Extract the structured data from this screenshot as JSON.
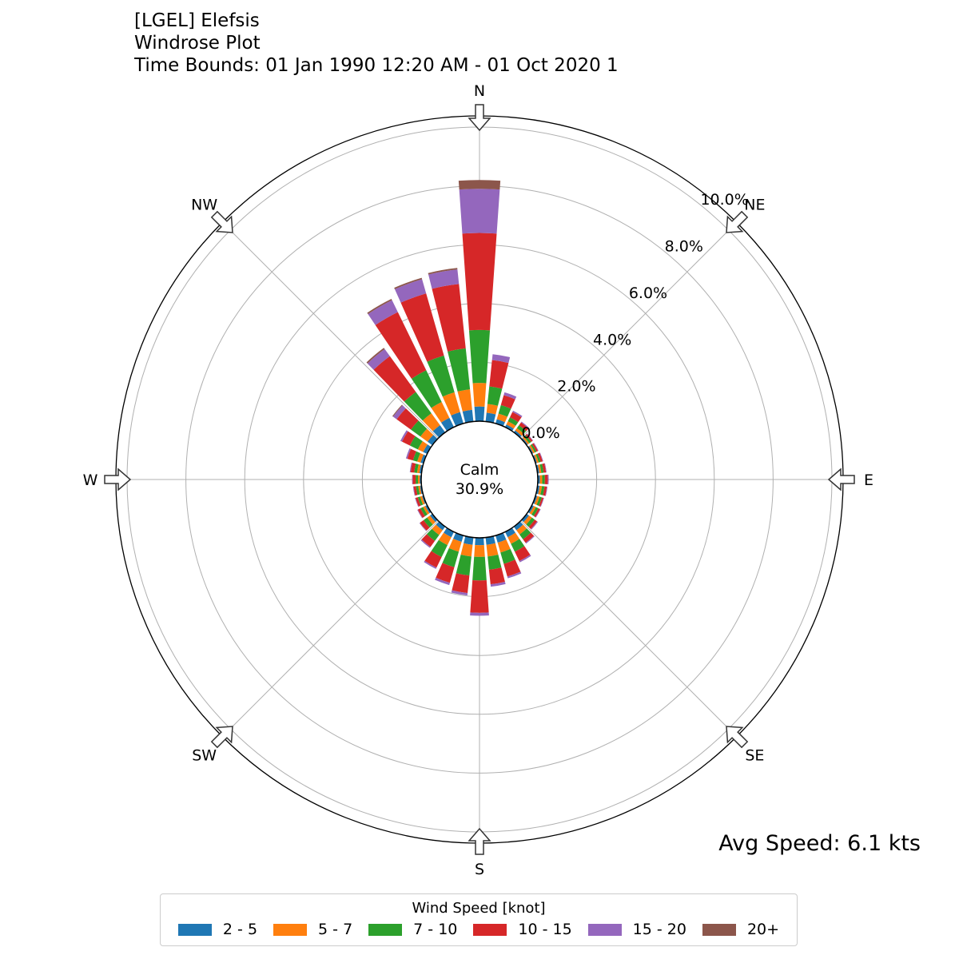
{
  "title_lines": [
    "[LGEL] Elefsis",
    "Windrose Plot",
    "Time Bounds: 01 Jan 1990 12:20 AM - 01 Oct 2020 1"
  ],
  "avg_speed": "Avg Speed: 6.1 kts",
  "calm": {
    "label": "Calm",
    "value": "30.9%"
  },
  "legend": {
    "title": "Wind Speed [knot]",
    "items": [
      {
        "label": "2 - 5",
        "color": "#1f77b4"
      },
      {
        "label": "5 - 7",
        "color": "#ff7f0e"
      },
      {
        "label": "7 - 10",
        "color": "#2ca02c"
      },
      {
        "label": "10 - 15",
        "color": "#d62728"
      },
      {
        "label": "15 - 20",
        "color": "#9467bd"
      },
      {
        "label": "20+",
        "color": "#8c564b"
      }
    ]
  },
  "chart_data": {
    "type": "windrose",
    "calm_percent": 30.9,
    "direction_labels": [
      "N",
      "NE",
      "E",
      "SE",
      "S",
      "SW",
      "W",
      "NW"
    ],
    "radial_tick_labels": [
      "0.0%",
      "2.0%",
      "4.0%",
      "6.0%",
      "8.0%",
      "10.0%"
    ],
    "radial_ticks": [
      0,
      2,
      4,
      6,
      8,
      10
    ],
    "rmax": 11,
    "speed_bins": [
      "2 - 5",
      "5 - 7",
      "7 - 10",
      "10 - 15",
      "15 - 20",
      "20+"
    ],
    "sector_directions_deg": [
      0,
      10,
      20,
      30,
      40,
      50,
      60,
      70,
      80,
      90,
      100,
      110,
      120,
      130,
      140,
      150,
      160,
      170,
      180,
      190,
      200,
      210,
      220,
      230,
      240,
      250,
      260,
      270,
      280,
      290,
      300,
      310,
      320,
      330,
      340,
      350
    ],
    "sector_bin_percent": [
      [
        0.5,
        0.8,
        1.8,
        3.3,
        1.5,
        0.3
      ],
      [
        0.3,
        0.3,
        0.6,
        0.9,
        0.2,
        0.0
      ],
      [
        0.15,
        0.2,
        0.3,
        0.35,
        0.1,
        0.0
      ],
      [
        0.1,
        0.12,
        0.15,
        0.2,
        0.05,
        0.0
      ],
      [
        0.08,
        0.1,
        0.12,
        0.12,
        0.03,
        0.0
      ],
      [
        0.05,
        0.06,
        0.08,
        0.06,
        0.02,
        0.0
      ],
      [
        0.05,
        0.06,
        0.06,
        0.06,
        0.02,
        0.0
      ],
      [
        0.05,
        0.06,
        0.07,
        0.07,
        0.02,
        0.0
      ],
      [
        0.06,
        0.07,
        0.08,
        0.08,
        0.02,
        0.0
      ],
      [
        0.07,
        0.08,
        0.09,
        0.1,
        0.03,
        0.0
      ],
      [
        0.07,
        0.08,
        0.09,
        0.08,
        0.02,
        0.0
      ],
      [
        0.06,
        0.08,
        0.08,
        0.06,
        0.02,
        0.0
      ],
      [
        0.07,
        0.08,
        0.09,
        0.07,
        0.02,
        0.0
      ],
      [
        0.1,
        0.12,
        0.12,
        0.1,
        0.03,
        0.0
      ],
      [
        0.15,
        0.18,
        0.2,
        0.15,
        0.03,
        0.0
      ],
      [
        0.2,
        0.25,
        0.3,
        0.35,
        0.05,
        0.0
      ],
      [
        0.25,
        0.35,
        0.4,
        0.45,
        0.06,
        0.0
      ],
      [
        0.25,
        0.4,
        0.45,
        0.5,
        0.08,
        0.0
      ],
      [
        0.25,
        0.4,
        0.8,
        1.1,
        0.1,
        0.0
      ],
      [
        0.25,
        0.4,
        0.65,
        0.6,
        0.08,
        0.0
      ],
      [
        0.22,
        0.35,
        0.55,
        0.55,
        0.08,
        0.0
      ],
      [
        0.2,
        0.3,
        0.45,
        0.4,
        0.05,
        0.0
      ],
      [
        0.15,
        0.2,
        0.25,
        0.25,
        0.04,
        0.0
      ],
      [
        0.1,
        0.12,
        0.15,
        0.15,
        0.02,
        0.0
      ],
      [
        0.07,
        0.08,
        0.1,
        0.1,
        0.02,
        0.0
      ],
      [
        0.05,
        0.07,
        0.08,
        0.08,
        0.02,
        0.0
      ],
      [
        0.05,
        0.06,
        0.08,
        0.08,
        0.02,
        0.0
      ],
      [
        0.05,
        0.06,
        0.08,
        0.1,
        0.02,
        0.0
      ],
      [
        0.07,
        0.08,
        0.1,
        0.12,
        0.03,
        0.0
      ],
      [
        0.1,
        0.12,
        0.15,
        0.2,
        0.05,
        0.0
      ],
      [
        0.15,
        0.2,
        0.3,
        0.3,
        0.06,
        0.0
      ],
      [
        0.2,
        0.3,
        0.4,
        0.6,
        0.15,
        0.03
      ],
      [
        0.3,
        0.5,
        0.9,
        1.5,
        0.3,
        0.05
      ],
      [
        0.35,
        0.6,
        1.2,
        2.2,
        0.45,
        0.05
      ],
      [
        0.4,
        0.7,
        1.3,
        2.2,
        0.5,
        0.05
      ],
      [
        0.4,
        0.7,
        1.4,
        2.2,
        0.5,
        0.05
      ]
    ]
  }
}
